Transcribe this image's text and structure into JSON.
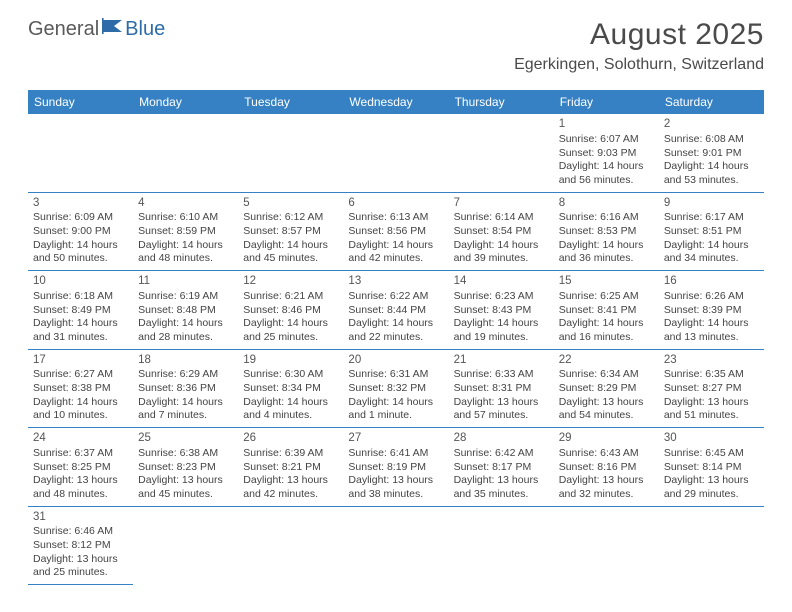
{
  "logo": {
    "text1": "General",
    "text2": "Blue"
  },
  "title": {
    "month": "August 2025",
    "location": "Egerkingen, Solothurn, Switzerland"
  },
  "colors": {
    "header_bg": "#3581c4",
    "header_text": "#ffffff",
    "border": "#3581c4",
    "logo_blue": "#2e6ca8",
    "text": "#444444"
  },
  "weekdays": [
    "Sunday",
    "Monday",
    "Tuesday",
    "Wednesday",
    "Thursday",
    "Friday",
    "Saturday"
  ],
  "weeks": [
    [
      null,
      null,
      null,
      null,
      null,
      {
        "n": "1",
        "sr": "Sunrise: 6:07 AM",
        "ss": "Sunset: 9:03 PM",
        "d1": "Daylight: 14 hours",
        "d2": "and 56 minutes."
      },
      {
        "n": "2",
        "sr": "Sunrise: 6:08 AM",
        "ss": "Sunset: 9:01 PM",
        "d1": "Daylight: 14 hours",
        "d2": "and 53 minutes."
      }
    ],
    [
      {
        "n": "3",
        "sr": "Sunrise: 6:09 AM",
        "ss": "Sunset: 9:00 PM",
        "d1": "Daylight: 14 hours",
        "d2": "and 50 minutes."
      },
      {
        "n": "4",
        "sr": "Sunrise: 6:10 AM",
        "ss": "Sunset: 8:59 PM",
        "d1": "Daylight: 14 hours",
        "d2": "and 48 minutes."
      },
      {
        "n": "5",
        "sr": "Sunrise: 6:12 AM",
        "ss": "Sunset: 8:57 PM",
        "d1": "Daylight: 14 hours",
        "d2": "and 45 minutes."
      },
      {
        "n": "6",
        "sr": "Sunrise: 6:13 AM",
        "ss": "Sunset: 8:56 PM",
        "d1": "Daylight: 14 hours",
        "d2": "and 42 minutes."
      },
      {
        "n": "7",
        "sr": "Sunrise: 6:14 AM",
        "ss": "Sunset: 8:54 PM",
        "d1": "Daylight: 14 hours",
        "d2": "and 39 minutes."
      },
      {
        "n": "8",
        "sr": "Sunrise: 6:16 AM",
        "ss": "Sunset: 8:53 PM",
        "d1": "Daylight: 14 hours",
        "d2": "and 36 minutes."
      },
      {
        "n": "9",
        "sr": "Sunrise: 6:17 AM",
        "ss": "Sunset: 8:51 PM",
        "d1": "Daylight: 14 hours",
        "d2": "and 34 minutes."
      }
    ],
    [
      {
        "n": "10",
        "sr": "Sunrise: 6:18 AM",
        "ss": "Sunset: 8:49 PM",
        "d1": "Daylight: 14 hours",
        "d2": "and 31 minutes."
      },
      {
        "n": "11",
        "sr": "Sunrise: 6:19 AM",
        "ss": "Sunset: 8:48 PM",
        "d1": "Daylight: 14 hours",
        "d2": "and 28 minutes."
      },
      {
        "n": "12",
        "sr": "Sunrise: 6:21 AM",
        "ss": "Sunset: 8:46 PM",
        "d1": "Daylight: 14 hours",
        "d2": "and 25 minutes."
      },
      {
        "n": "13",
        "sr": "Sunrise: 6:22 AM",
        "ss": "Sunset: 8:44 PM",
        "d1": "Daylight: 14 hours",
        "d2": "and 22 minutes."
      },
      {
        "n": "14",
        "sr": "Sunrise: 6:23 AM",
        "ss": "Sunset: 8:43 PM",
        "d1": "Daylight: 14 hours",
        "d2": "and 19 minutes."
      },
      {
        "n": "15",
        "sr": "Sunrise: 6:25 AM",
        "ss": "Sunset: 8:41 PM",
        "d1": "Daylight: 14 hours",
        "d2": "and 16 minutes."
      },
      {
        "n": "16",
        "sr": "Sunrise: 6:26 AM",
        "ss": "Sunset: 8:39 PM",
        "d1": "Daylight: 14 hours",
        "d2": "and 13 minutes."
      }
    ],
    [
      {
        "n": "17",
        "sr": "Sunrise: 6:27 AM",
        "ss": "Sunset: 8:38 PM",
        "d1": "Daylight: 14 hours",
        "d2": "and 10 minutes."
      },
      {
        "n": "18",
        "sr": "Sunrise: 6:29 AM",
        "ss": "Sunset: 8:36 PM",
        "d1": "Daylight: 14 hours",
        "d2": "and 7 minutes."
      },
      {
        "n": "19",
        "sr": "Sunrise: 6:30 AM",
        "ss": "Sunset: 8:34 PM",
        "d1": "Daylight: 14 hours",
        "d2": "and 4 minutes."
      },
      {
        "n": "20",
        "sr": "Sunrise: 6:31 AM",
        "ss": "Sunset: 8:32 PM",
        "d1": "Daylight: 14 hours",
        "d2": "and 1 minute."
      },
      {
        "n": "21",
        "sr": "Sunrise: 6:33 AM",
        "ss": "Sunset: 8:31 PM",
        "d1": "Daylight: 13 hours",
        "d2": "and 57 minutes."
      },
      {
        "n": "22",
        "sr": "Sunrise: 6:34 AM",
        "ss": "Sunset: 8:29 PM",
        "d1": "Daylight: 13 hours",
        "d2": "and 54 minutes."
      },
      {
        "n": "23",
        "sr": "Sunrise: 6:35 AM",
        "ss": "Sunset: 8:27 PM",
        "d1": "Daylight: 13 hours",
        "d2": "and 51 minutes."
      }
    ],
    [
      {
        "n": "24",
        "sr": "Sunrise: 6:37 AM",
        "ss": "Sunset: 8:25 PM",
        "d1": "Daylight: 13 hours",
        "d2": "and 48 minutes."
      },
      {
        "n": "25",
        "sr": "Sunrise: 6:38 AM",
        "ss": "Sunset: 8:23 PM",
        "d1": "Daylight: 13 hours",
        "d2": "and 45 minutes."
      },
      {
        "n": "26",
        "sr": "Sunrise: 6:39 AM",
        "ss": "Sunset: 8:21 PM",
        "d1": "Daylight: 13 hours",
        "d2": "and 42 minutes."
      },
      {
        "n": "27",
        "sr": "Sunrise: 6:41 AM",
        "ss": "Sunset: 8:19 PM",
        "d1": "Daylight: 13 hours",
        "d2": "and 38 minutes."
      },
      {
        "n": "28",
        "sr": "Sunrise: 6:42 AM",
        "ss": "Sunset: 8:17 PM",
        "d1": "Daylight: 13 hours",
        "d2": "and 35 minutes."
      },
      {
        "n": "29",
        "sr": "Sunrise: 6:43 AM",
        "ss": "Sunset: 8:16 PM",
        "d1": "Daylight: 13 hours",
        "d2": "and 32 minutes."
      },
      {
        "n": "30",
        "sr": "Sunrise: 6:45 AM",
        "ss": "Sunset: 8:14 PM",
        "d1": "Daylight: 13 hours",
        "d2": "and 29 minutes."
      }
    ],
    [
      {
        "n": "31",
        "sr": "Sunrise: 6:46 AM",
        "ss": "Sunset: 8:12 PM",
        "d1": "Daylight: 13 hours",
        "d2": "and 25 minutes."
      },
      null,
      null,
      null,
      null,
      null,
      null
    ]
  ]
}
